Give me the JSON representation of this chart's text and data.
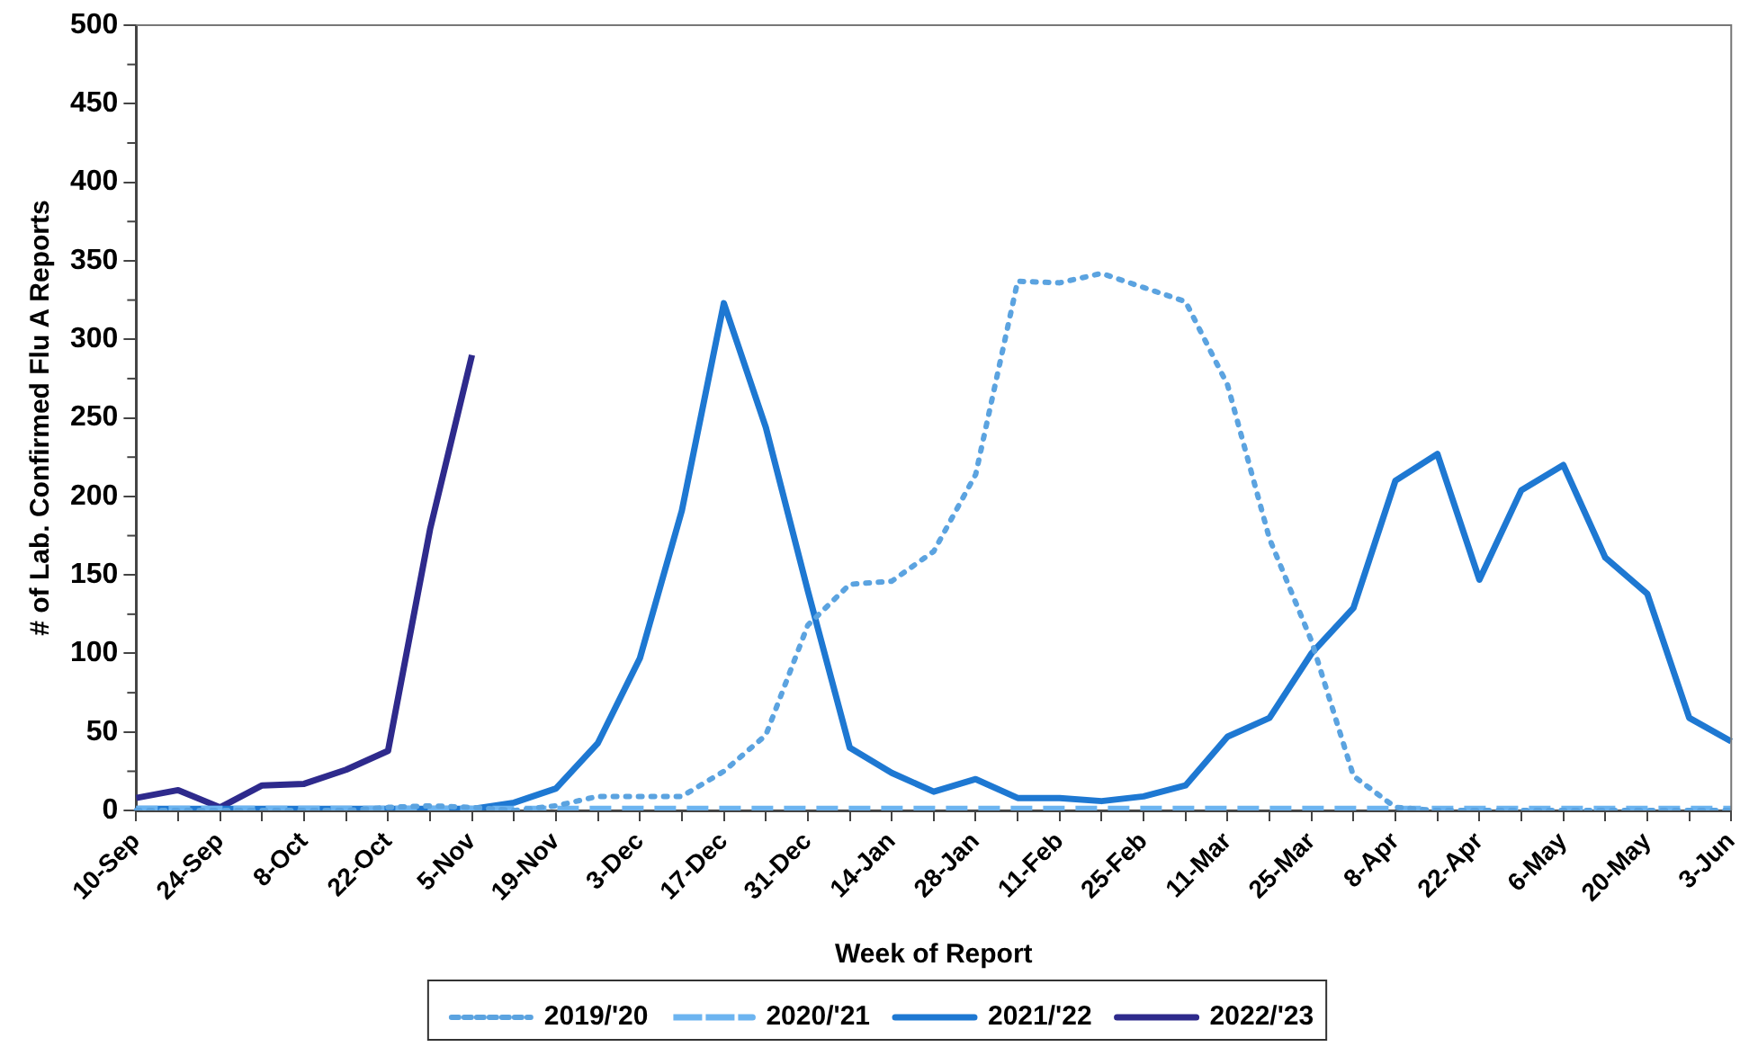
{
  "chart_data": {
    "type": "line",
    "xlabel": "Week of Report",
    "ylabel": "# of Lab. Confirmed Flu A Reports",
    "categories": [
      "10-Sep",
      null,
      "24-Sep",
      null,
      "8-Oct",
      null,
      "22-Oct",
      null,
      "5-Nov",
      null,
      "19-Nov",
      null,
      "3-Dec",
      null,
      "17-Dec",
      null,
      "31-Dec",
      null,
      "14-Jan",
      null,
      "28-Jan",
      null,
      "11-Feb",
      null,
      "25-Feb",
      null,
      "11-Mar",
      null,
      "25-Mar",
      null,
      "8-Apr",
      null,
      "22-Apr",
      null,
      "6-May",
      null,
      "20-May",
      null,
      "3-Jun"
    ],
    "series": [
      {
        "name": "2019/'20",
        "color": "#5ba3e0",
        "line_style": "dotted",
        "values": [
          0,
          0,
          0,
          0,
          0,
          0,
          2,
          3,
          2,
          0,
          3,
          9,
          9,
          9,
          25,
          48,
          118,
          144,
          146,
          165,
          214,
          337,
          336,
          342,
          333,
          324,
          271,
          173,
          108,
          22,
          2,
          0,
          0,
          0,
          0,
          0,
          0,
          0,
          0
        ]
      },
      {
        "name": "2020/'21",
        "color": "#6cb4f0",
        "line_style": "dashed",
        "values": [
          1,
          1,
          1,
          1,
          1,
          1,
          1,
          1,
          1,
          1,
          1,
          1,
          1,
          1,
          1,
          1,
          1,
          1,
          1,
          1,
          1,
          1,
          1,
          1,
          1,
          1,
          1,
          1,
          1,
          1,
          1,
          1,
          1,
          1,
          1,
          1,
          1,
          1,
          1
        ]
      },
      {
        "name": "2021/'22",
        "color": "#1e78d2",
        "line_style": "solid",
        "values": [
          1,
          1,
          1,
          1,
          1,
          1,
          1,
          1,
          1,
          5,
          14,
          43,
          97,
          191,
          323,
          244,
          140,
          40,
          24,
          12,
          20,
          8,
          8,
          6,
          9,
          16,
          47,
          59,
          100,
          129,
          210,
          227,
          147,
          204,
          220,
          161,
          138,
          59,
          44
        ]
      },
      {
        "name": "2022/'23",
        "color": "#2e2a8c",
        "line_style": "solid",
        "values": [
          8,
          13,
          2,
          16,
          17,
          26,
          38,
          179,
          290,
          null,
          null,
          null,
          null,
          null,
          null,
          null,
          null,
          null,
          null,
          null,
          null,
          null,
          null,
          null,
          null,
          null,
          null,
          null,
          null,
          null,
          null,
          null,
          null,
          null,
          null,
          null,
          null,
          null,
          null
        ]
      }
    ],
    "ylim": [
      0,
      500
    ],
    "yticks": [
      0,
      50,
      100,
      150,
      200,
      250,
      300,
      350,
      400,
      450,
      500
    ],
    "grid": false,
    "legend": "bottom",
    "marker": "none"
  }
}
